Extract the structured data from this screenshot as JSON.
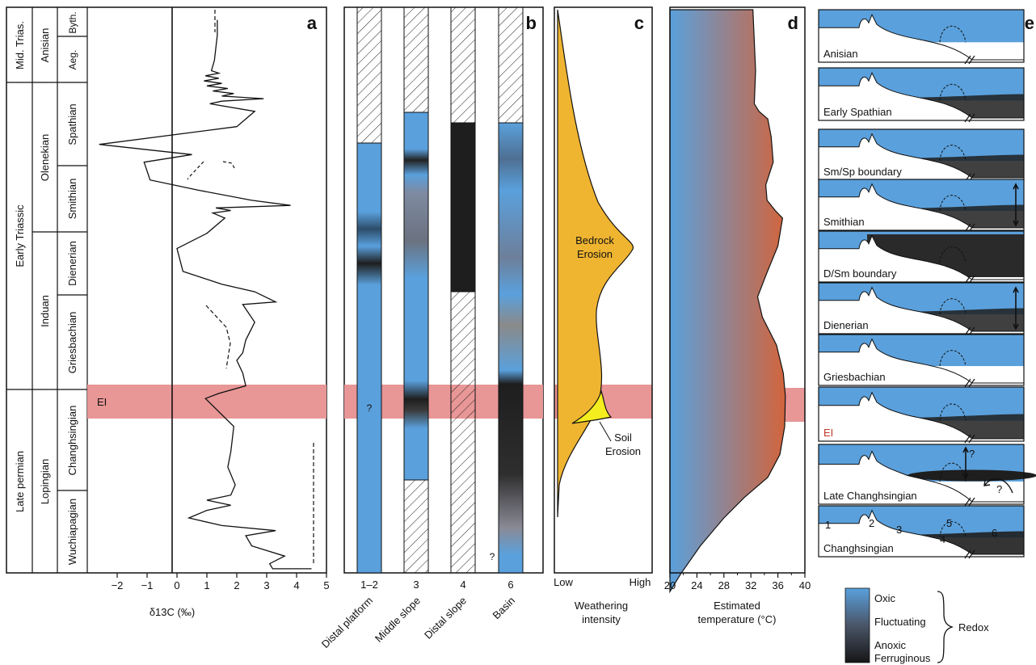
{
  "figure": {
    "panel_labels": [
      "a",
      "b",
      "c",
      "d",
      "e"
    ],
    "event_label": "EI",
    "colors": {
      "oxic": "#5aa0dc",
      "anoxic": "#1e1e1e",
      "event_band": "#e89696",
      "weathering_bedrock": "#efb430",
      "weathering_soil": "#f5ee1e",
      "temp_cool": "#5aa0dc",
      "temp_warm": "#d2643c"
    }
  },
  "stratigraphy": {
    "periods": [
      "Mid. Trias.",
      "Early Triassic",
      "Late permian"
    ],
    "epochs": [
      "Anisian",
      "Olenekian",
      "Induan",
      "Lopingian"
    ],
    "stages": [
      "Byth.",
      "Aeg.",
      "Spathian",
      "Smithian",
      "Dienerian",
      "Griesbachian",
      "Changhsingian",
      "Wuchiapagian"
    ]
  },
  "chart_data": [
    {
      "panel": "a",
      "type": "line",
      "xlabel": "δ13C (‰)",
      "xlim": [
        -3,
        5
      ],
      "xticks": [
        "−2",
        "−1",
        "0",
        "1",
        "2",
        "3",
        "4",
        "5"
      ],
      "series": [
        {
          "name": "",
          "values": [
            [
              1.35,
              0.02
            ],
            [
              1.35,
              0.05
            ],
            [
              1.25,
              0.1
            ],
            [
              1.15,
              0.12
            ],
            [
              1.4,
              0.125
            ],
            [
              0.95,
              0.13
            ],
            [
              1.4,
              0.135
            ],
            [
              0.9,
              0.14
            ],
            [
              1.5,
              0.145
            ],
            [
              1.0,
              0.15
            ],
            [
              1.7,
              0.155
            ],
            [
              1.2,
              0.16
            ],
            [
              1.9,
              0.165
            ],
            [
              1.5,
              0.17
            ],
            [
              2.9,
              0.175
            ],
            [
              1.5,
              0.18
            ],
            [
              1.1,
              0.185
            ],
            [
              2.6,
              0.2
            ],
            [
              2.0,
              0.23
            ],
            [
              -2.6,
              0.265
            ],
            [
              0.5,
              0.285
            ],
            [
              -1.1,
              0.3
            ],
            [
              -0.9,
              0.335
            ],
            [
              0.7,
              0.355
            ],
            [
              2.5,
              0.375
            ],
            [
              3.8,
              0.385
            ],
            [
              1.3,
              0.39
            ],
            [
              1.8,
              0.395
            ],
            [
              1.2,
              0.4
            ],
            [
              1.6,
              0.41
            ],
            [
              1.0,
              0.44
            ],
            [
              0.0,
              0.47
            ],
            [
              0.2,
              0.515
            ],
            [
              1.5,
              0.54
            ],
            [
              2.6,
              0.555
            ],
            [
              3.3,
              0.575
            ],
            [
              2.2,
              0.58
            ],
            [
              2.6,
              0.615
            ],
            [
              2.3,
              0.65
            ],
            [
              2.2,
              0.675
            ],
            [
              2.0,
              0.69
            ],
            [
              2.2,
              0.715
            ],
            [
              2.3,
              0.74
            ],
            [
              1.4,
              0.755
            ],
            [
              0.95,
              0.765
            ],
            [
              1.9,
              0.82
            ],
            [
              1.8,
              0.87
            ],
            [
              1.7,
              0.9
            ],
            [
              1.95,
              0.935
            ],
            [
              1.8,
              0.955
            ],
            [
              1.0,
              0.965
            ],
            [
              1.8,
              0.975
            ],
            [
              1.0,
              0.985
            ],
            [
              0.4,
              1.0
            ],
            [
              1.5,
              1.015
            ],
            [
              3.3,
              1.025
            ],
            [
              2.3,
              1.035
            ],
            [
              2.5,
              1.055
            ],
            [
              3.6,
              1.075
            ],
            [
              3.1,
              1.09
            ],
            [
              3.2,
              1.1
            ],
            [
              4.4,
              1.1
            ],
            [
              4.5,
              1.1
            ]
          ]
        }
      ]
    },
    {
      "panel": "b",
      "type": "heatmap",
      "categories": [
        "1–2",
        "3",
        "4",
        "6"
      ],
      "column_titles": [
        "Distal platform",
        "Middle slope",
        "Distal slope",
        "Basin"
      ],
      "annotations": [
        "?",
        "?"
      ],
      "legend": {
        "entries": [
          "Oxic",
          "Fluctuating",
          "Anoxic\nFerruginous"
        ],
        "group_label": "Redox"
      }
    },
    {
      "panel": "c",
      "type": "area",
      "xlabel": "Weathering\nintensity",
      "xticks": [
        "Low",
        "High"
      ],
      "labels": [
        "Bedrock\nErosion",
        "Soil\nErosion"
      ]
    },
    {
      "panel": "d",
      "type": "area",
      "xlabel": "Estimated\ntemperature (°C)",
      "xlim": [
        20,
        40
      ],
      "xticks": [
        "20",
        "24",
        "28",
        "32",
        "36",
        "40"
      ],
      "series": [
        {
          "name": "",
          "values": [
            [
              32.3,
              0.0
            ],
            [
              32.7,
              0.12
            ],
            [
              32.5,
              0.185
            ],
            [
              33.2,
              0.2
            ],
            [
              34.5,
              0.215
            ],
            [
              35.0,
              0.25
            ],
            [
              35.3,
              0.3
            ],
            [
              34.2,
              0.345
            ],
            [
              34.4,
              0.375
            ],
            [
              35.6,
              0.395
            ],
            [
              36.7,
              0.41
            ],
            [
              36.0,
              0.465
            ],
            [
              34.3,
              0.52
            ],
            [
              33.0,
              0.565
            ],
            [
              33.7,
              0.605
            ],
            [
              35.8,
              0.66
            ],
            [
              36.8,
              0.715
            ],
            [
              37.1,
              0.76
            ],
            [
              37.0,
              0.82
            ],
            [
              36.3,
              0.875
            ],
            [
              34.5,
              0.92
            ],
            [
              31.0,
              0.96
            ],
            [
              28.0,
              1.0
            ],
            [
              24.5,
              1.055
            ],
            [
              21.6,
              1.11
            ],
            [
              20.0,
              1.145
            ]
          ]
        }
      ]
    },
    {
      "panel": "e",
      "type": "table",
      "items": [
        "Anisian",
        "Early Spathian",
        "Sm/Sp boundary",
        "Smithian",
        "D/Sm boundary",
        "Dienerian",
        "Griesbachian",
        "EI",
        "Late Changhsingian",
        "Changhsingian"
      ],
      "question_marks": [
        "?",
        "?"
      ],
      "numbers": [
        "1",
        "2",
        "3",
        "4",
        "5",
        "6"
      ]
    }
  ]
}
